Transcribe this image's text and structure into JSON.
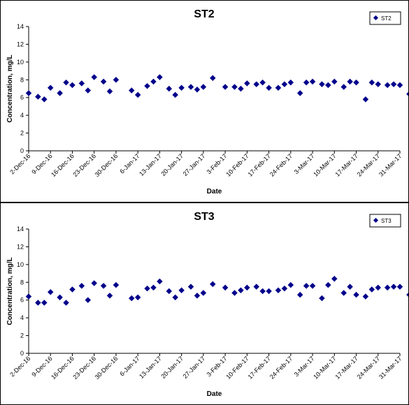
{
  "chart_data": [
    {
      "type": "scatter",
      "title": "ST2",
      "xlabel": "Date",
      "ylabel": "Concentration, mg/L",
      "legend": "ST2",
      "legend_position": "top-right",
      "grid": false,
      "ylim": [
        0,
        14
      ],
      "yticks": [
        "0",
        "2",
        "4",
        "6",
        "8",
        "10",
        "12",
        "14"
      ],
      "xlim": [
        "2016-12-02",
        "2017-03-31"
      ],
      "xticks": [
        "2-Dec-16",
        "9-Dec-16",
        "16-Dec-16",
        "23-Dec-16",
        "30-Dec-16",
        "6-Jan-17",
        "13-Jan-17",
        "20-Jan-17",
        "27-Jan-17",
        "3-Feb-17",
        "10-Feb-17",
        "17-Feb-17",
        "24-Feb-17",
        "3-Mar-17",
        "10-Mar-17",
        "17-Mar-17",
        "24-Mar-17",
        "31-Mar-17"
      ],
      "color": "#00008B",
      "points": [
        {
          "x": "2016-12-02",
          "y": 6.5
        },
        {
          "x": "2016-12-05",
          "y": 6.1
        },
        {
          "x": "2016-12-07",
          "y": 5.8
        },
        {
          "x": "2016-12-09",
          "y": 7.1
        },
        {
          "x": "2016-12-12",
          "y": 6.5
        },
        {
          "x": "2016-12-14",
          "y": 7.7
        },
        {
          "x": "2016-12-16",
          "y": 7.4
        },
        {
          "x": "2016-12-19",
          "y": 7.6
        },
        {
          "x": "2016-12-21",
          "y": 6.8
        },
        {
          "x": "2016-12-23",
          "y": 8.3
        },
        {
          "x": "2016-12-26",
          "y": 7.8
        },
        {
          "x": "2016-12-28",
          "y": 6.7
        },
        {
          "x": "2016-12-30",
          "y": 8.0
        },
        {
          "x": "2017-01-04",
          "y": 6.8
        },
        {
          "x": "2017-01-06",
          "y": 6.3
        },
        {
          "x": "2017-01-09",
          "y": 7.3
        },
        {
          "x": "2017-01-11",
          "y": 7.8
        },
        {
          "x": "2017-01-13",
          "y": 8.3
        },
        {
          "x": "2017-01-16",
          "y": 7.0
        },
        {
          "x": "2017-01-18",
          "y": 6.3
        },
        {
          "x": "2017-01-20",
          "y": 7.1
        },
        {
          "x": "2017-01-23",
          "y": 7.2
        },
        {
          "x": "2017-01-25",
          "y": 6.9
        },
        {
          "x": "2017-01-27",
          "y": 7.2
        },
        {
          "x": "2017-01-30",
          "y": 8.2
        },
        {
          "x": "2017-02-03",
          "y": 7.2
        },
        {
          "x": "2017-02-06",
          "y": 7.2
        },
        {
          "x": "2017-02-08",
          "y": 7.0
        },
        {
          "x": "2017-02-10",
          "y": 7.6
        },
        {
          "x": "2017-02-13",
          "y": 7.5
        },
        {
          "x": "2017-02-15",
          "y": 7.7
        },
        {
          "x": "2017-02-17",
          "y": 7.1
        },
        {
          "x": "2017-02-20",
          "y": 7.1
        },
        {
          "x": "2017-02-22",
          "y": 7.5
        },
        {
          "x": "2017-02-24",
          "y": 7.7
        },
        {
          "x": "2017-02-27",
          "y": 6.5
        },
        {
          "x": "2017-03-01",
          "y": 7.7
        },
        {
          "x": "2017-03-03",
          "y": 7.8
        },
        {
          "x": "2017-03-06",
          "y": 7.5
        },
        {
          "x": "2017-03-08",
          "y": 7.4
        },
        {
          "x": "2017-03-10",
          "y": 7.8
        },
        {
          "x": "2017-03-13",
          "y": 7.2
        },
        {
          "x": "2017-03-15",
          "y": 7.8
        },
        {
          "x": "2017-03-17",
          "y": 7.7
        },
        {
          "x": "2017-03-20",
          "y": 5.8
        },
        {
          "x": "2017-03-22",
          "y": 7.7
        },
        {
          "x": "2017-03-24",
          "y": 7.5
        },
        {
          "x": "2017-03-27",
          "y": 7.4
        },
        {
          "x": "2017-03-29",
          "y": 7.5
        },
        {
          "x": "2017-03-31",
          "y": 7.4
        },
        {
          "x": "2017-04-03",
          "y": 6.4
        }
      ]
    },
    {
      "type": "scatter",
      "title": "ST3",
      "xlabel": "Date",
      "ylabel": "Concentration, mg/L",
      "legend": "ST3",
      "legend_position": "top-right",
      "grid": false,
      "ylim": [
        0,
        14
      ],
      "yticks": [
        "0",
        "2",
        "4",
        "6",
        "8",
        "10",
        "12",
        "14"
      ],
      "xlim": [
        "2016-12-02",
        "2017-03-31"
      ],
      "xticks": [
        "2-Dec-16",
        "9-Dec-16",
        "16-Dec-16",
        "23-Dec-16",
        "30-Dec-16",
        "6-Jan-17",
        "13-Jan-17",
        "20-Jan-17",
        "27-Jan-17",
        "3-Feb-17",
        "10-Feb-17",
        "17-Feb-17",
        "24-Feb-17",
        "3-Mar-17",
        "10-Mar-17",
        "17-Mar-17",
        "24-Mar-17",
        "31-Mar-17"
      ],
      "color": "#00008B",
      "points": [
        {
          "x": "2016-12-02",
          "y": 6.4
        },
        {
          "x": "2016-12-05",
          "y": 5.7
        },
        {
          "x": "2016-12-07",
          "y": 5.7
        },
        {
          "x": "2016-12-09",
          "y": 6.9
        },
        {
          "x": "2016-12-12",
          "y": 6.3
        },
        {
          "x": "2016-12-14",
          "y": 5.7
        },
        {
          "x": "2016-12-16",
          "y": 7.2
        },
        {
          "x": "2016-12-19",
          "y": 7.6
        },
        {
          "x": "2016-12-21",
          "y": 6.0
        },
        {
          "x": "2016-12-23",
          "y": 7.9
        },
        {
          "x": "2016-12-26",
          "y": 7.6
        },
        {
          "x": "2016-12-28",
          "y": 6.5
        },
        {
          "x": "2016-12-30",
          "y": 7.7
        },
        {
          "x": "2017-01-04",
          "y": 6.2
        },
        {
          "x": "2017-01-06",
          "y": 6.3
        },
        {
          "x": "2017-01-09",
          "y": 7.3
        },
        {
          "x": "2017-01-11",
          "y": 7.4
        },
        {
          "x": "2017-01-13",
          "y": 8.1
        },
        {
          "x": "2017-01-16",
          "y": 7.0
        },
        {
          "x": "2017-01-18",
          "y": 6.3
        },
        {
          "x": "2017-01-20",
          "y": 7.1
        },
        {
          "x": "2017-01-23",
          "y": 7.5
        },
        {
          "x": "2017-01-25",
          "y": 6.5
        },
        {
          "x": "2017-01-27",
          "y": 6.8
        },
        {
          "x": "2017-01-30",
          "y": 7.8
        },
        {
          "x": "2017-02-03",
          "y": 7.4
        },
        {
          "x": "2017-02-06",
          "y": 6.8
        },
        {
          "x": "2017-02-08",
          "y": 7.1
        },
        {
          "x": "2017-02-10",
          "y": 7.4
        },
        {
          "x": "2017-02-13",
          "y": 7.5
        },
        {
          "x": "2017-02-15",
          "y": 7.0
        },
        {
          "x": "2017-02-17",
          "y": 7.0
        },
        {
          "x": "2017-02-20",
          "y": 7.1
        },
        {
          "x": "2017-02-22",
          "y": 7.3
        },
        {
          "x": "2017-02-24",
          "y": 7.7
        },
        {
          "x": "2017-02-27",
          "y": 6.6
        },
        {
          "x": "2017-03-01",
          "y": 7.6
        },
        {
          "x": "2017-03-03",
          "y": 7.6
        },
        {
          "x": "2017-03-06",
          "y": 6.2
        },
        {
          "x": "2017-03-08",
          "y": 7.7
        },
        {
          "x": "2017-03-10",
          "y": 8.4
        },
        {
          "x": "2017-03-13",
          "y": 6.8
        },
        {
          "x": "2017-03-15",
          "y": 7.5
        },
        {
          "x": "2017-03-17",
          "y": 6.6
        },
        {
          "x": "2017-03-20",
          "y": 6.4
        },
        {
          "x": "2017-03-22",
          "y": 7.2
        },
        {
          "x": "2017-03-24",
          "y": 7.4
        },
        {
          "x": "2017-03-27",
          "y": 7.4
        },
        {
          "x": "2017-03-29",
          "y": 7.5
        },
        {
          "x": "2017-03-31",
          "y": 7.5
        },
        {
          "x": "2017-04-03",
          "y": 6.6
        }
      ]
    }
  ]
}
